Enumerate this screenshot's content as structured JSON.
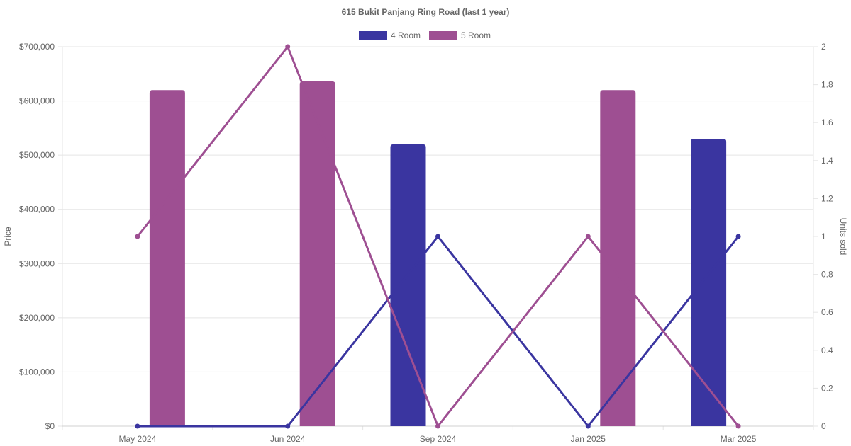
{
  "chart_data": {
    "type": "bar",
    "title": "615 Bukit Panjang Ring Road (last 1 year)",
    "categories": [
      "May 2024",
      "Jun 2024",
      "Sep 2024",
      "Jan 2025",
      "Mar 2025"
    ],
    "y_left": {
      "label": "Price",
      "range": [
        0,
        700000
      ],
      "ticks": [
        "$0",
        "$100,000",
        "$200,000",
        "$300,000",
        "$400,000",
        "$500,000",
        "$600,000",
        "$700,000"
      ]
    },
    "y_right": {
      "label": "Units sold",
      "range": [
        0,
        2
      ],
      "ticks": [
        "0",
        "0.2",
        "0.4",
        "0.6",
        "0.8",
        "1",
        "1.2",
        "1.4",
        "1.6",
        "1.8",
        "2"
      ]
    },
    "legend": {
      "placement": "top-center"
    },
    "grid": true,
    "series": [
      {
        "name": "4 Room",
        "color": "#3a35a0",
        "price": [
          null,
          null,
          520000,
          null,
          530000
        ],
        "units": [
          0,
          0,
          1,
          0,
          1
        ]
      },
      {
        "name": "5 Room",
        "color": "#9e4f92",
        "price": [
          620000,
          636000,
          null,
          620000,
          null
        ],
        "units": [
          1,
          2,
          0,
          1,
          0
        ]
      }
    ]
  }
}
